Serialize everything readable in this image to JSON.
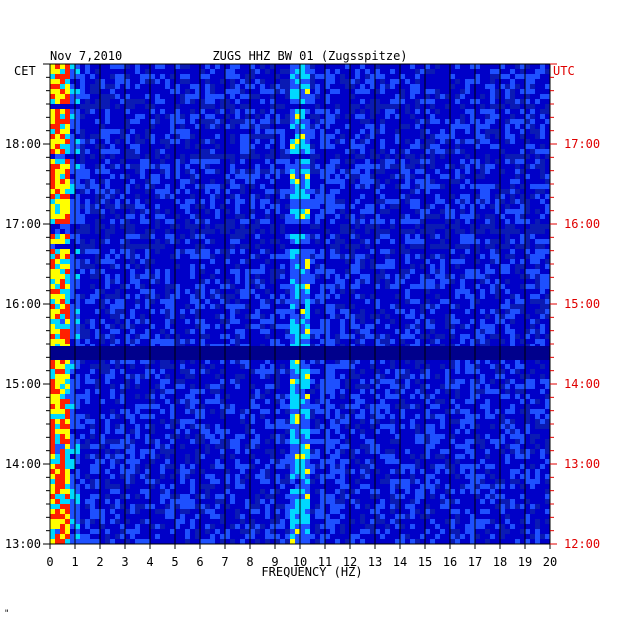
{
  "chart_data": {
    "type": "heatmap",
    "title": "ZUGS HHZ BW 01 (Zugsspitze)",
    "date": "Nov 7,2010",
    "xlabel": "FREQUENCY (HZ)",
    "x_ticks": [
      "0",
      "1",
      "2",
      "3",
      "4",
      "5",
      "6",
      "7",
      "8",
      "9",
      "10",
      "11",
      "12",
      "13",
      "14",
      "15",
      "16",
      "17",
      "18",
      "19",
      "20"
    ],
    "xlim": [
      0,
      20
    ],
    "left_axis_label": "CET",
    "right_axis_label": "UTC",
    "left_time_ticks": [
      "18:00",
      "17:00",
      "16:00",
      "15:00",
      "14:00",
      "13:00"
    ],
    "right_time_ticks": [
      "17:00",
      "16:00",
      "15:00",
      "14:00",
      "13:00",
      "12:00"
    ],
    "colors": {
      "background": "#0000c8",
      "low": "#0a1ab4",
      "mid": "#1e50ff",
      "high": "#00d8ff",
      "peak": "#ffff00",
      "max": "#ff2000",
      "right_axis": "#e00000"
    },
    "footer_mark": "\""
  }
}
